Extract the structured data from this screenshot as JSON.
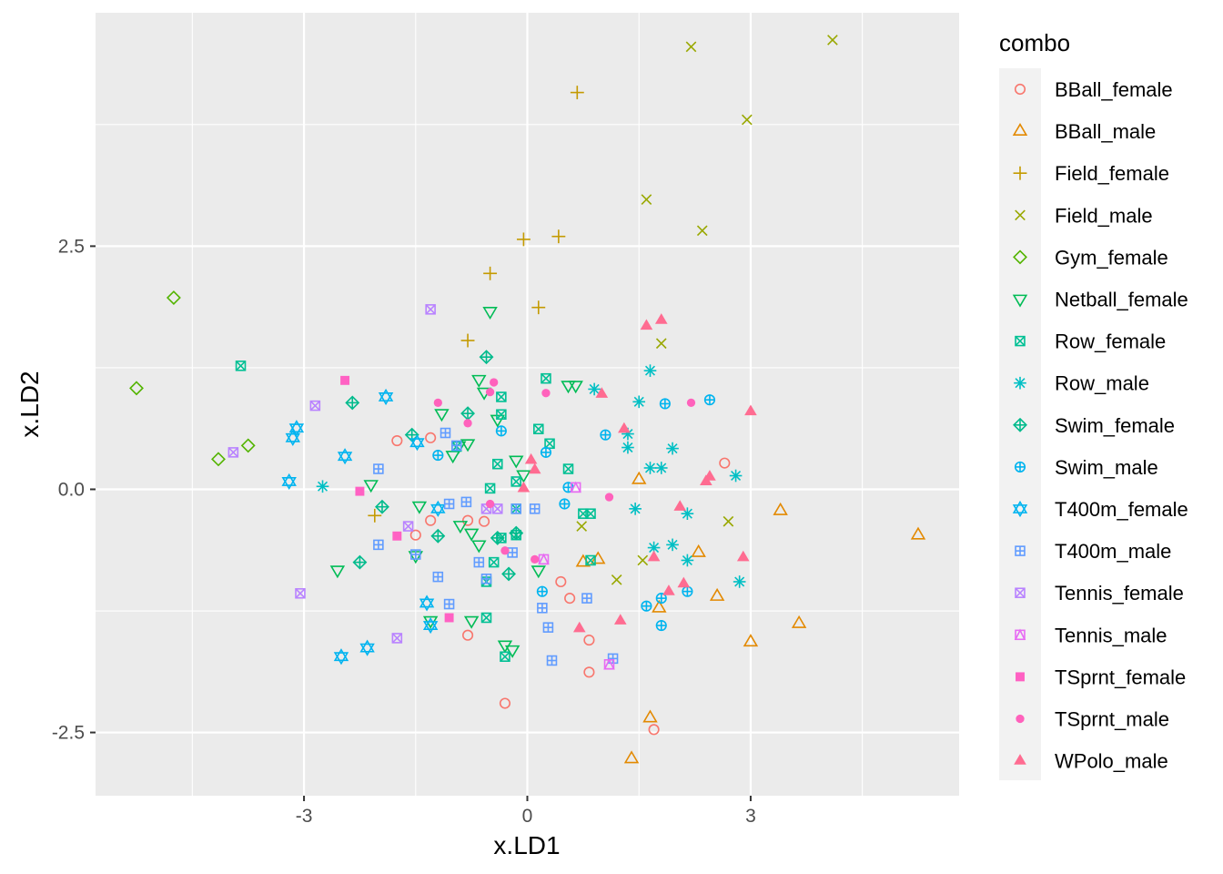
{
  "chart_data": {
    "type": "scatter",
    "xlabel": "x.LD1",
    "ylabel": "x.LD2",
    "xlim": [
      -5.8,
      5.8
    ],
    "ylim": [
      -3.15,
      4.9
    ],
    "x_ticks": [
      -3,
      0,
      3
    ],
    "x_tick_labels": [
      "-3",
      "0",
      "3"
    ],
    "y_ticks": [
      -2.5,
      0.0,
      2.5
    ],
    "y_tick_labels": [
      "-2.5",
      "0.0",
      "2.5"
    ],
    "grid": true,
    "legend_title": "combo",
    "legend_position": "right",
    "series": [
      {
        "name": "BBall_female",
        "color": "#F8766D",
        "shape": "circle-open",
        "points": [
          [
            -1.75,
            0.5
          ],
          [
            -1.3,
            0.53
          ],
          [
            -1.5,
            -0.47
          ],
          [
            -1.3,
            -0.32
          ],
          [
            -0.8,
            -0.32
          ],
          [
            -0.58,
            -0.33
          ],
          [
            -0.8,
            -1.5
          ],
          [
            -0.3,
            -2.2
          ],
          [
            0.45,
            -0.95
          ],
          [
            0.57,
            -1.12
          ],
          [
            0.83,
            -1.55
          ],
          [
            0.83,
            -1.88
          ],
          [
            1.7,
            -2.47
          ],
          [
            2.65,
            0.27
          ]
        ]
      },
      {
        "name": "BBall_male",
        "color": "#E38900",
        "shape": "triangle-open",
        "points": [
          [
            1.5,
            0.1
          ],
          [
            0.75,
            -0.75
          ],
          [
            0.95,
            -0.72
          ],
          [
            1.77,
            -1.22
          ],
          [
            2.3,
            -0.65
          ],
          [
            2.55,
            -1.1
          ],
          [
            3.4,
            -0.22
          ],
          [
            3.65,
            -1.38
          ],
          [
            3.0,
            -1.57
          ],
          [
            1.65,
            -2.35
          ],
          [
            1.4,
            -2.77
          ],
          [
            5.25,
            -0.47
          ]
        ]
      },
      {
        "name": "Field_female",
        "color": "#C49A00",
        "shape": "plus",
        "points": [
          [
            0.67,
            4.08
          ],
          [
            -0.05,
            2.57
          ],
          [
            0.42,
            2.6
          ],
          [
            -0.5,
            2.22
          ],
          [
            0.15,
            1.87
          ],
          [
            -0.8,
            1.53
          ],
          [
            -2.05,
            -0.27
          ]
        ]
      },
      {
        "name": "Field_male",
        "color": "#99A800",
        "shape": "cross",
        "points": [
          [
            2.2,
            4.55
          ],
          [
            4.1,
            4.62
          ],
          [
            2.95,
            3.8
          ],
          [
            1.6,
            2.98
          ],
          [
            2.35,
            2.66
          ],
          [
            1.8,
            1.5
          ],
          [
            0.73,
            -0.38
          ],
          [
            2.7,
            -0.33
          ],
          [
            1.55,
            -0.73
          ],
          [
            1.2,
            -0.93
          ]
        ]
      },
      {
        "name": "Gym_female",
        "color": "#53B400",
        "shape": "diamond-open",
        "points": [
          [
            -4.75,
            1.97
          ],
          [
            -5.25,
            1.04
          ],
          [
            -4.15,
            0.31
          ],
          [
            -3.75,
            0.45
          ]
        ]
      },
      {
        "name": "Netball_female",
        "color": "#00BC56",
        "shape": "triangle-down-open",
        "points": [
          [
            -0.5,
            1.83
          ],
          [
            -0.65,
            1.13
          ],
          [
            -0.58,
            1.0
          ],
          [
            -0.4,
            0.72
          ],
          [
            0.55,
            1.07
          ],
          [
            0.65,
            1.07
          ],
          [
            -1.15,
            0.78
          ],
          [
            -1.0,
            0.35
          ],
          [
            -0.92,
            0.45
          ],
          [
            -0.8,
            0.47
          ],
          [
            -1.45,
            -0.17
          ],
          [
            -1.5,
            -0.68
          ],
          [
            -2.55,
            -0.83
          ],
          [
            -2.1,
            0.05
          ],
          [
            -0.9,
            -0.37
          ],
          [
            -0.75,
            -0.45
          ],
          [
            -0.65,
            -0.57
          ],
          [
            -0.15,
            0.3
          ],
          [
            -0.05,
            0.15
          ],
          [
            0.15,
            -0.83
          ],
          [
            -1.3,
            -1.35
          ],
          [
            -0.75,
            -1.35
          ],
          [
            -0.3,
            -1.6
          ],
          [
            -0.2,
            -1.65
          ]
        ]
      },
      {
        "name": "Row_female",
        "color": "#00C094",
        "shape": "square-cross",
        "points": [
          [
            -3.85,
            1.27
          ],
          [
            0.25,
            1.14
          ],
          [
            -0.35,
            0.95
          ],
          [
            -0.35,
            0.77
          ],
          [
            -0.4,
            0.26
          ],
          [
            -0.5,
            0.01
          ],
          [
            0.15,
            0.62
          ],
          [
            0.3,
            0.47
          ],
          [
            0.55,
            0.21
          ],
          [
            -0.15,
            0.08
          ],
          [
            -0.95,
            0.44
          ],
          [
            -0.15,
            -0.2
          ],
          [
            0.75,
            -0.25
          ],
          [
            0.85,
            -0.25
          ],
          [
            -0.35,
            -0.5
          ],
          [
            -0.15,
            -0.47
          ],
          [
            -0.45,
            -0.75
          ],
          [
            0.85,
            -0.73
          ],
          [
            -0.55,
            -0.95
          ],
          [
            -0.55,
            -1.32
          ],
          [
            -0.3,
            -1.72
          ]
        ]
      },
      {
        "name": "Row_male",
        "color": "#00BFC4",
        "shape": "asterisk",
        "points": [
          [
            0.9,
            1.03
          ],
          [
            1.65,
            1.22
          ],
          [
            1.5,
            0.9
          ],
          [
            1.35,
            0.57
          ],
          [
            1.35,
            0.43
          ],
          [
            1.95,
            0.42
          ],
          [
            1.65,
            0.22
          ],
          [
            1.8,
            0.22
          ],
          [
            2.8,
            0.14
          ],
          [
            -2.75,
            0.03
          ],
          [
            1.45,
            -0.2
          ],
          [
            2.15,
            -0.25
          ],
          [
            1.7,
            -0.6
          ],
          [
            1.95,
            -0.57
          ],
          [
            2.15,
            -0.73
          ],
          [
            2.85,
            -0.95
          ]
        ]
      },
      {
        "name": "Swim_female",
        "color": "#00BB8C",
        "shape": "diamond-plus",
        "points": [
          [
            -0.55,
            1.36
          ],
          [
            -2.35,
            0.89
          ],
          [
            -0.8,
            0.78
          ],
          [
            -1.55,
            0.56
          ],
          [
            -1.95,
            -0.18
          ],
          [
            -1.2,
            -0.48
          ],
          [
            -2.25,
            -0.75
          ],
          [
            -0.25,
            -0.87
          ],
          [
            -0.15,
            -0.45
          ],
          [
            -0.4,
            -0.5
          ]
        ]
      },
      {
        "name": "Swim_male",
        "color": "#00B4EF",
        "shape": "circle-plus",
        "points": [
          [
            1.85,
            0.88
          ],
          [
            2.45,
            0.92
          ],
          [
            1.05,
            0.56
          ],
          [
            -0.35,
            0.6
          ],
          [
            -1.2,
            0.35
          ],
          [
            0.25,
            0.38
          ],
          [
            0.55,
            0.02
          ],
          [
            0.5,
            -0.15
          ],
          [
            0.2,
            -1.05
          ],
          [
            1.6,
            -1.2
          ],
          [
            1.8,
            -1.12
          ],
          [
            2.15,
            -1.05
          ],
          [
            1.8,
            -1.4
          ]
        ]
      },
      {
        "name": "T400m_female",
        "color": "#00B4F0",
        "shape": "star-of-david",
        "points": [
          [
            -1.9,
            0.95
          ],
          [
            -3.1,
            0.63
          ],
          [
            -3.15,
            0.53
          ],
          [
            -1.48,
            0.48
          ],
          [
            -2.45,
            0.34
          ],
          [
            -3.2,
            0.08
          ],
          [
            -1.2,
            -0.2
          ],
          [
            -1.35,
            -1.17
          ],
          [
            -1.3,
            -1.4
          ],
          [
            -2.15,
            -1.63
          ],
          [
            -2.5,
            -1.72
          ]
        ]
      },
      {
        "name": "T400m_male",
        "color": "#619CFF",
        "shape": "square-plus",
        "points": [
          [
            -1.1,
            0.58
          ],
          [
            -0.95,
            0.45
          ],
          [
            -2.0,
            0.21
          ],
          [
            -1.05,
            -0.15
          ],
          [
            -0.82,
            -0.13
          ],
          [
            -0.15,
            -0.2
          ],
          [
            0.1,
            -0.2
          ],
          [
            -2.0,
            -0.57
          ],
          [
            -1.5,
            -0.67
          ],
          [
            -0.65,
            -0.75
          ],
          [
            -0.2,
            -0.65
          ],
          [
            -1.2,
            -0.9
          ],
          [
            -0.55,
            -0.92
          ],
          [
            -1.05,
            -1.18
          ],
          [
            0.2,
            -1.22
          ],
          [
            0.8,
            -1.12
          ],
          [
            0.28,
            -1.42
          ],
          [
            1.15,
            -1.74
          ],
          [
            0.33,
            -1.76
          ]
        ]
      },
      {
        "name": "Tennis_female",
        "color": "#B983FF",
        "shape": "square-cross",
        "points": [
          [
            -1.3,
            1.85
          ],
          [
            -2.85,
            0.86
          ],
          [
            -3.95,
            0.38
          ],
          [
            -1.6,
            -0.38
          ],
          [
            -0.55,
            -0.2
          ],
          [
            -0.4,
            -0.2
          ],
          [
            -3.05,
            -1.07
          ],
          [
            -1.75,
            -1.53
          ]
        ]
      },
      {
        "name": "Tennis_male",
        "color": "#E76BF3",
        "shape": "square-triangle",
        "points": [
          [
            0.65,
            0.02
          ],
          [
            0.22,
            -0.72
          ],
          [
            1.1,
            -1.8
          ]
        ]
      },
      {
        "name": "TSprnt_female",
        "color": "#FF61C3",
        "shape": "square-filled",
        "points": [
          [
            -2.45,
            1.12
          ],
          [
            -2.25,
            -0.02
          ],
          [
            -1.75,
            -0.48
          ],
          [
            -1.05,
            -1.32
          ]
        ]
      },
      {
        "name": "TSprnt_male",
        "color": "#FF62BC",
        "shape": "circle-filled",
        "points": [
          [
            -1.2,
            0.89
          ],
          [
            -0.45,
            1.1
          ],
          [
            -0.5,
            1.0
          ],
          [
            0.25,
            0.99
          ],
          [
            2.2,
            0.89
          ],
          [
            -0.8,
            0.68
          ],
          [
            -0.5,
            -0.15
          ],
          [
            -0.3,
            -0.63
          ],
          [
            0.1,
            -0.72
          ],
          [
            1.1,
            -0.08
          ]
        ]
      },
      {
        "name": "WPolo_male",
        "color": "#FF6C91",
        "shape": "triangle-filled",
        "points": [
          [
            1.6,
            1.68
          ],
          [
            1.8,
            1.74
          ],
          [
            1.0,
            0.98
          ],
          [
            1.3,
            0.62
          ],
          [
            3.0,
            0.8
          ],
          [
            0.05,
            0.3
          ],
          [
            0.1,
            0.2
          ],
          [
            2.45,
            0.13
          ],
          [
            2.4,
            0.08
          ],
          [
            -0.05,
            0.01
          ],
          [
            2.05,
            -0.18
          ],
          [
            2.9,
            -0.7
          ],
          [
            1.7,
            -0.7
          ],
          [
            2.1,
            -0.97
          ],
          [
            1.9,
            -1.05
          ],
          [
            1.25,
            -1.35
          ],
          [
            0.7,
            -1.43
          ]
        ]
      }
    ]
  }
}
